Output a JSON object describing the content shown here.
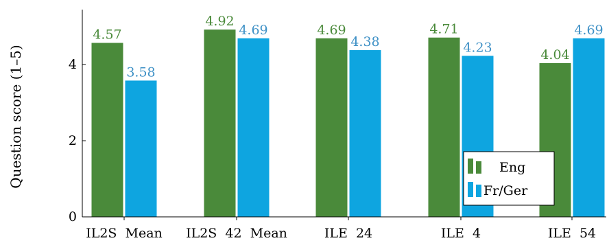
{
  "chart_data": {
    "type": "bar",
    "ylabel": "Question score (1–5)",
    "ylim": [
      0,
      5.3
    ],
    "yticks": [
      0,
      2,
      4
    ],
    "categories": [
      "IL2S  Mean",
      "IL2S  42  Mean",
      "ILE  24",
      "ILE  4",
      "ILE  54"
    ],
    "series": [
      {
        "name": "Eng",
        "color": "#4a8a3a",
        "label_color": "#4a8a3a",
        "values": [
          4.57,
          4.92,
          4.69,
          4.71,
          4.04
        ],
        "labels": [
          "4.57",
          "4.92",
          "4.69",
          "4.71",
          "4.04"
        ]
      },
      {
        "name": "Fr/Ger",
        "color": "#0ea5e0",
        "label_color": "#3f91c6",
        "values": [
          3.58,
          4.69,
          4.38,
          4.23,
          4.69
        ],
        "labels": [
          "3.58",
          "4.69",
          "4.38",
          "4.23",
          "4.69"
        ]
      }
    ],
    "legend": "bottom-right",
    "grid": false
  }
}
